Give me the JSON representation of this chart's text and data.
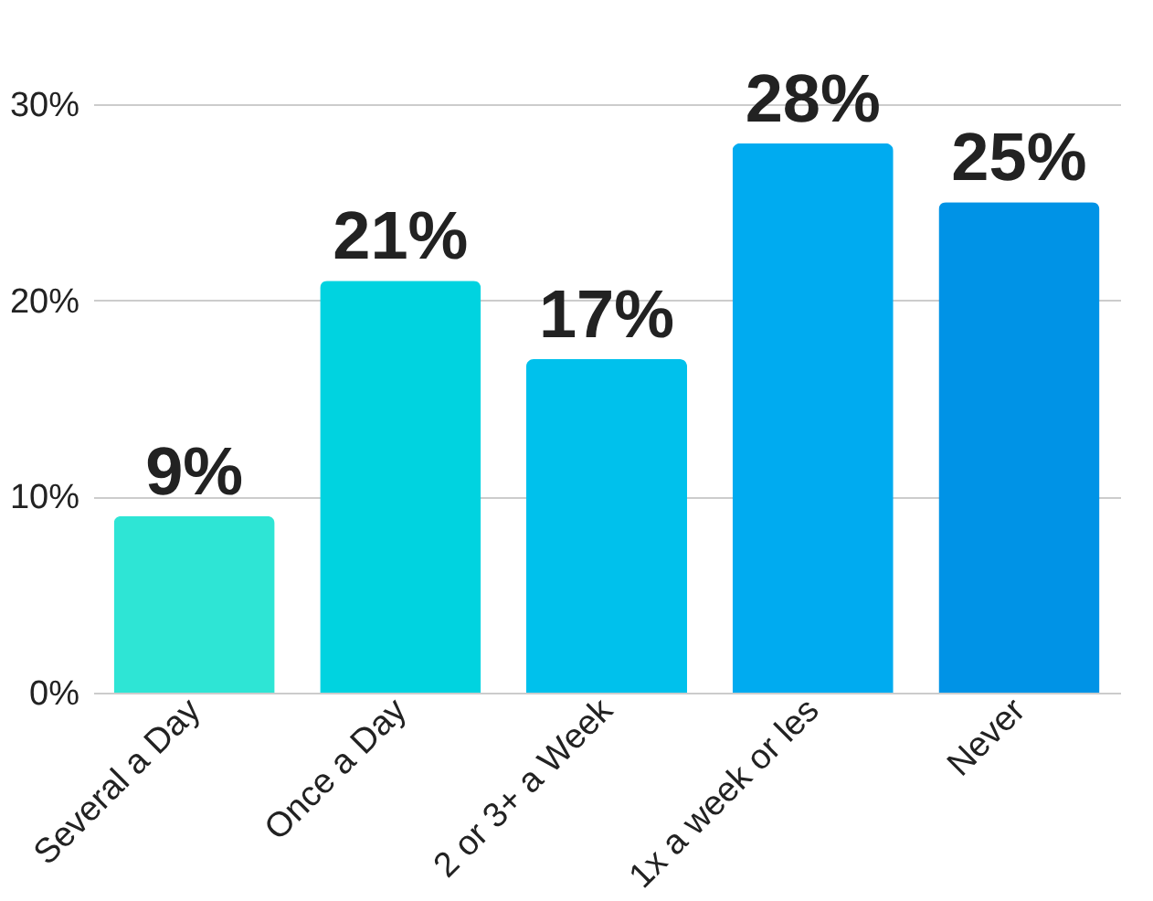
{
  "chart_data": {
    "type": "bar",
    "categories": [
      "Several a Day",
      "Once a Day",
      "2 or 3+ a Week",
      "1x a week or les",
      "Never"
    ],
    "values": [
      9,
      21,
      17,
      28,
      25
    ],
    "colors": [
      "#2ee5d5",
      "#00d3e0",
      "#00c1ec",
      "#00abf0",
      "#0093e6"
    ],
    "value_labels": [
      "9%",
      "21%",
      "17%",
      "28%",
      "25%"
    ],
    "ylim": [
      0,
      30
    ],
    "yticks": [
      {
        "value": 0,
        "label": "0%"
      },
      {
        "value": 10,
        "label": "10%"
      },
      {
        "value": 20,
        "label": "20%"
      },
      {
        "value": 30,
        "label": "30%"
      }
    ],
    "grid": "y"
  }
}
